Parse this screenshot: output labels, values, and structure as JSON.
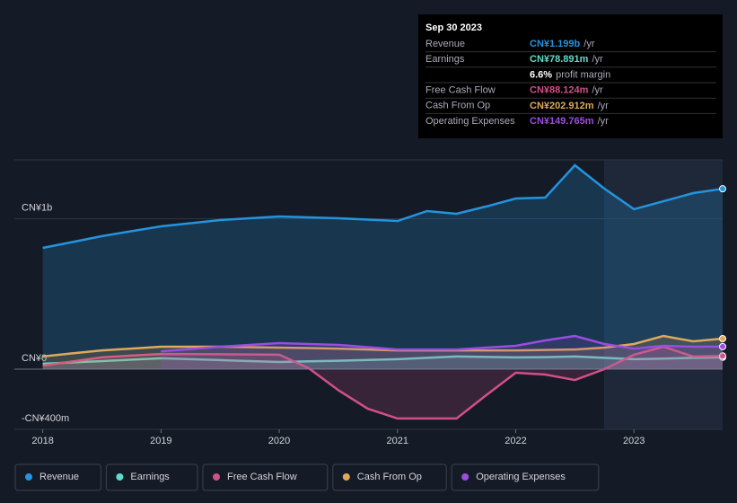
{
  "chart_data": {
    "type": "area",
    "x": [
      2018,
      2018.25,
      2018.5,
      2018.75,
      2019,
      2019.25,
      2019.5,
      2019.75,
      2020,
      2020.25,
      2020.5,
      2020.75,
      2021,
      2021.25,
      2021.5,
      2021.75,
      2022,
      2022.25,
      2022.5,
      2022.75,
      2023,
      2023.25,
      2023.5,
      2023.75
    ],
    "xlim": [
      2017.76,
      2023.75
    ],
    "xticks": [
      2018,
      2019,
      2020,
      2021,
      2022,
      2023
    ],
    "ylim": [
      -400,
      1391
    ],
    "yticks": [
      {
        "value": 1000,
        "label": "CN¥1b"
      },
      {
        "value": 0,
        "label": "CN¥0"
      },
      {
        "value": -400,
        "label": "-CN¥400m"
      }
    ],
    "grid": true,
    "series": [
      {
        "name": "Revenue",
        "color": "#2394df",
        "values": [
          806,
          845,
          884,
          917,
          949,
          970,
          991,
          1003,
          1015,
          1009,
          1003,
          994,
          985,
          1051,
          1033,
          1081,
          1134,
          1140,
          1355,
          1200,
          1063,
          1116,
          1170,
          1199
        ]
      },
      {
        "name": "Earnings",
        "color": "#5fdcc9",
        "values": [
          36,
          45,
          54,
          63,
          72,
          66,
          60,
          54,
          48,
          52,
          56,
          61,
          66,
          75,
          84,
          81,
          78,
          80,
          84,
          75,
          66,
          70,
          75,
          79
        ]
      },
      {
        "name": "Free Cash Flow",
        "color": "#d14f8a",
        "values": [
          24,
          51,
          78,
          90,
          101,
          100,
          99,
          98,
          96,
          6,
          -140,
          -263,
          -328,
          -328,
          -328,
          -173,
          -24,
          -36,
          -72,
          0,
          96,
          149,
          84,
          88
        ]
      },
      {
        "name": "Cash From Op",
        "color": "#e0a95a",
        "values": [
          84,
          105,
          125,
          137,
          149,
          149,
          149,
          146,
          143,
          140,
          137,
          131,
          125,
          125,
          125,
          125,
          125,
          128,
          131,
          143,
          167,
          221,
          185,
          203
        ]
      },
      {
        "name": "Operating Expenses",
        "color": "#9b4de0",
        "values": [
          null,
          null,
          null,
          null,
          119,
          134,
          149,
          161,
          173,
          167,
          161,
          146,
          131,
          131,
          131,
          143,
          155,
          191,
          221,
          167,
          137,
          155,
          149,
          150
        ]
      }
    ]
  },
  "tooltip": {
    "date": "Sep 30 2023",
    "rows": [
      {
        "label": "Revenue",
        "value": "CN¥1.199b",
        "suffix": "/yr"
      },
      {
        "label": "Earnings",
        "value": "CN¥78.891m",
        "suffix": "/yr"
      },
      {
        "label": "",
        "value": "6.6%",
        "suffix": "profit margin"
      },
      {
        "label": "Free Cash Flow",
        "value": "CN¥88.124m",
        "suffix": "/yr"
      },
      {
        "label": "Cash From Op",
        "value": "CN¥202.912m",
        "suffix": "/yr"
      },
      {
        "label": "Operating Expenses",
        "value": "CN¥149.765m",
        "suffix": "/yr"
      }
    ]
  }
}
